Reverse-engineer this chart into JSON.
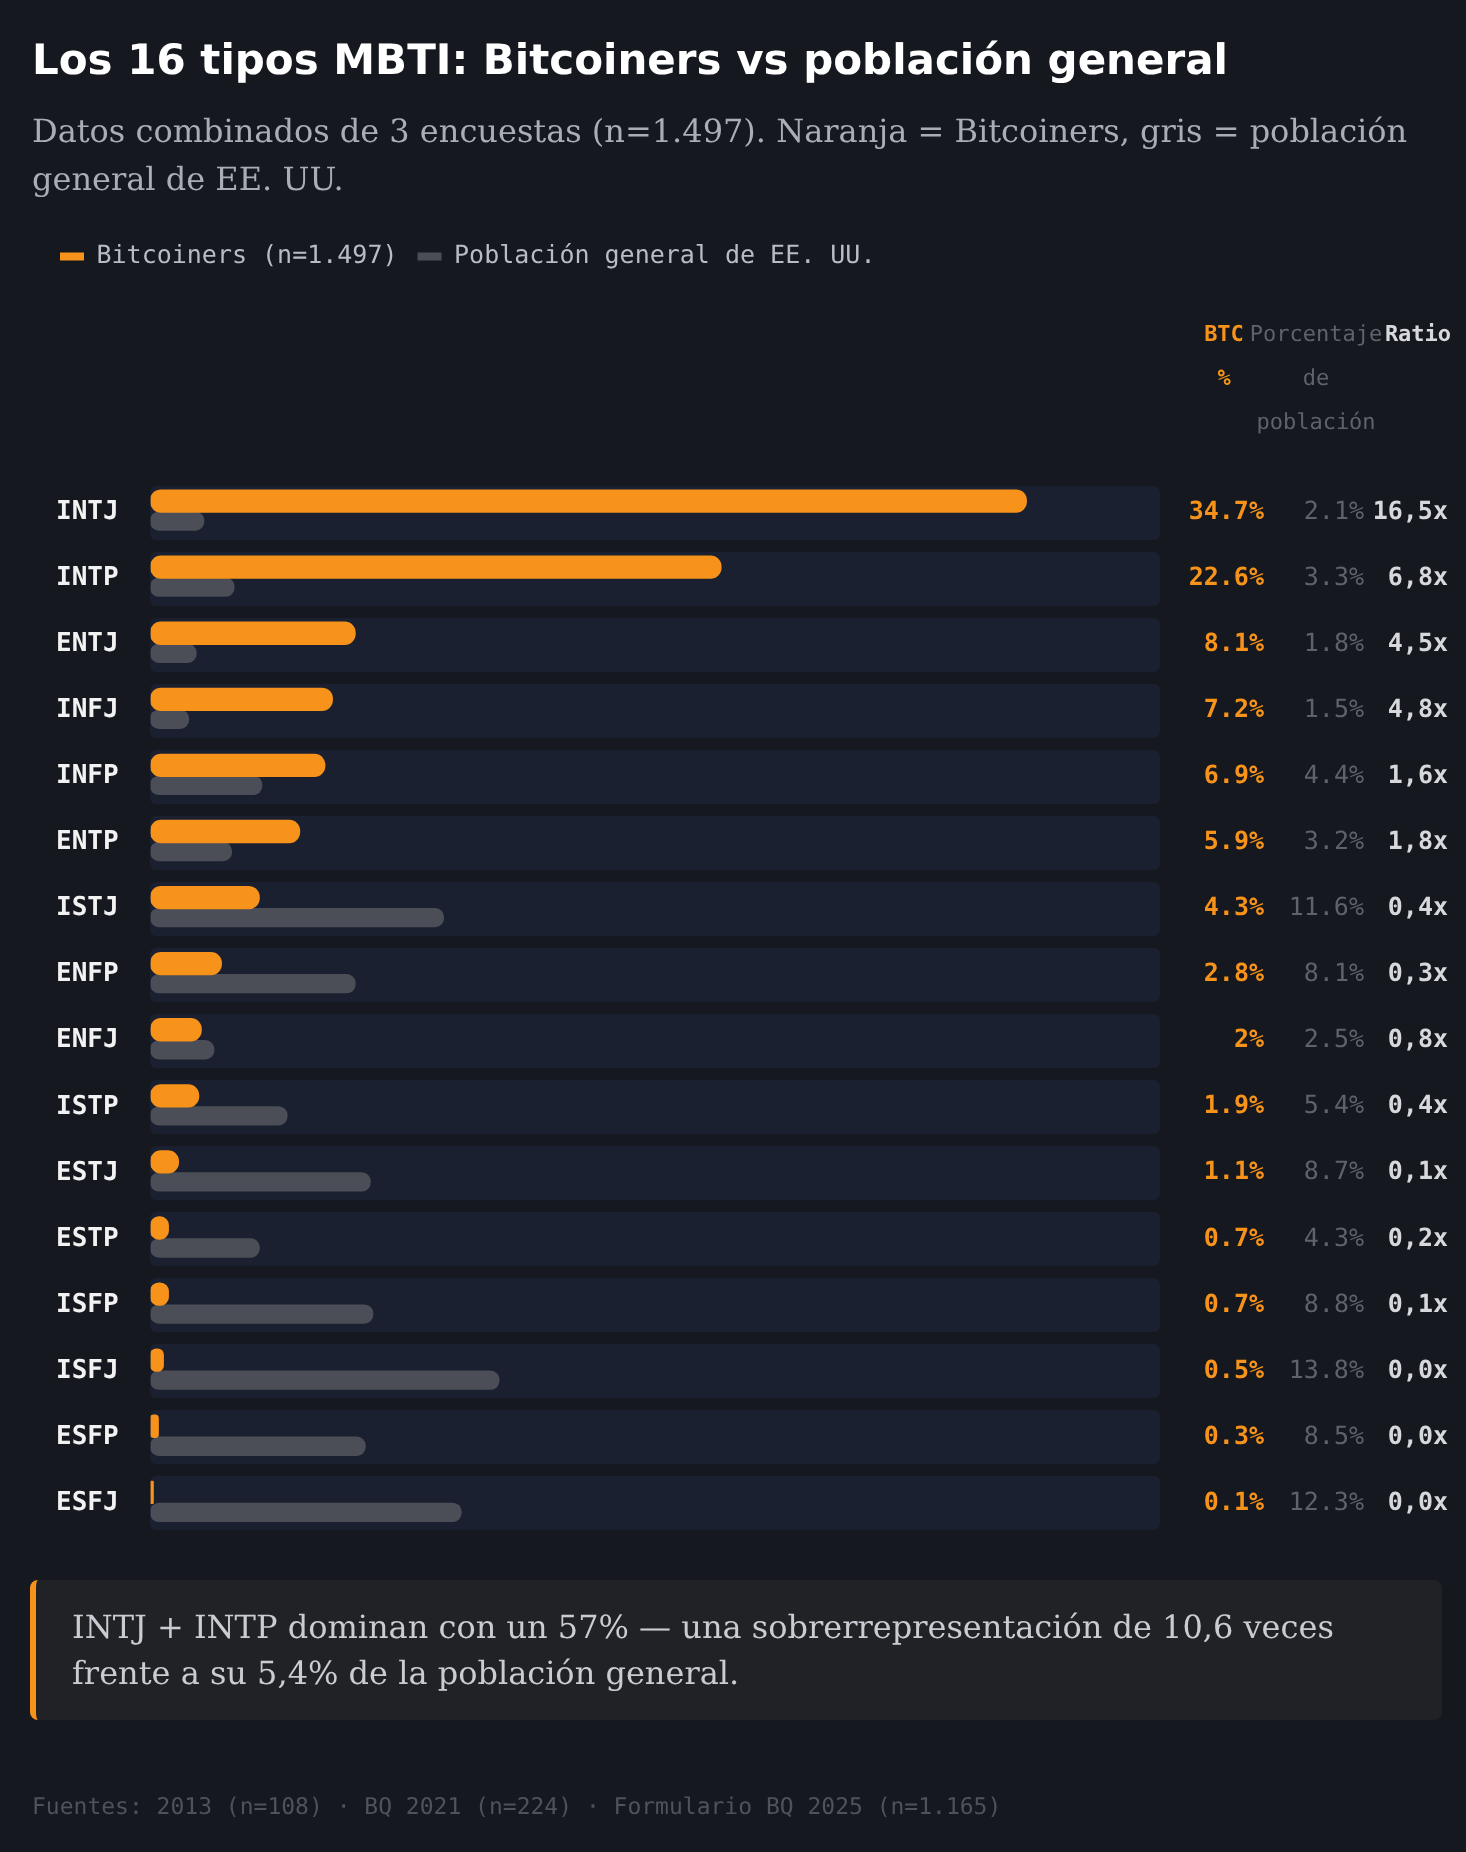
{
  "chart_data": {
    "type": "bar",
    "orientation": "horizontal",
    "title": "Los 16 tipos MBTI: Bitcoiners vs población general",
    "subtitle": "Datos combinados de 3 encuestas (n=1.497). Naranja = Bitcoiners, gris = población general de EE. UU.",
    "categories": [
      "INTJ",
      "INTP",
      "ENTJ",
      "INFJ",
      "INFP",
      "ENTP",
      "ISTJ",
      "ENFP",
      "ENFJ",
      "ISTP",
      "ESTJ",
      "ESTP",
      "ISFP",
      "ISFJ",
      "ESFP",
      "ESFJ"
    ],
    "series": [
      {
        "name": "Bitcoiners (n=1.497)",
        "color": "#f7931a",
        "values": [
          34.7,
          22.6,
          8.1,
          7.2,
          6.9,
          5.9,
          4.3,
          2.8,
          2,
          1.9,
          1.1,
          0.7,
          0.7,
          0.5,
          0.3,
          0.1
        ],
        "value_labels": [
          "34.7%",
          "22.6%",
          "8.1%",
          "7.2%",
          "6.9%",
          "5.9%",
          "4.3%",
          "2.8%",
          "2%",
          "1.9%",
          "1.1%",
          "0.7%",
          "0.7%",
          "0.5%",
          "0.3%",
          "0.1%"
        ]
      },
      {
        "name": "Población general de EE. UU.",
        "color": "#4b4e57",
        "values": [
          2.1,
          3.3,
          1.8,
          1.5,
          4.4,
          3.2,
          11.6,
          8.1,
          2.5,
          5.4,
          8.7,
          4.3,
          8.8,
          13.8,
          8.5,
          12.3
        ],
        "value_labels": [
          "2.1%",
          "3.3%",
          "1.8%",
          "1.5%",
          "4.4%",
          "3.2%",
          "11.6%",
          "8.1%",
          "2.5%",
          "5.4%",
          "8.7%",
          "4.3%",
          "8.8%",
          "13.8%",
          "8.5%",
          "12.3%"
        ]
      }
    ],
    "xlim": [
      0,
      40
    ],
    "tick_labels": "y",
    "legend": "top left",
    "annotations": [
      "BTC %",
      "Porcentaje de población",
      "Ratio",
      "INTJ + INTP dominan con un 57% — una sobrerrepresentación de 10,6 veces frente a su 5,4% de la población general.",
      "Fuentes: 2013 (n=108) · BQ 2021 (n=224) · Formulario BQ 2025 (n=1.165)",
      "16,5x",
      "6,8x",
      "4,5x",
      "4,8x",
      "1,6x",
      "1,8x",
      "0,4x",
      "0,3x",
      "0,8x",
      "0,4x",
      "0,1x",
      "0,2x",
      "0,1x",
      "0,0x",
      "0,0x",
      "0,0x"
    ]
  }
}
